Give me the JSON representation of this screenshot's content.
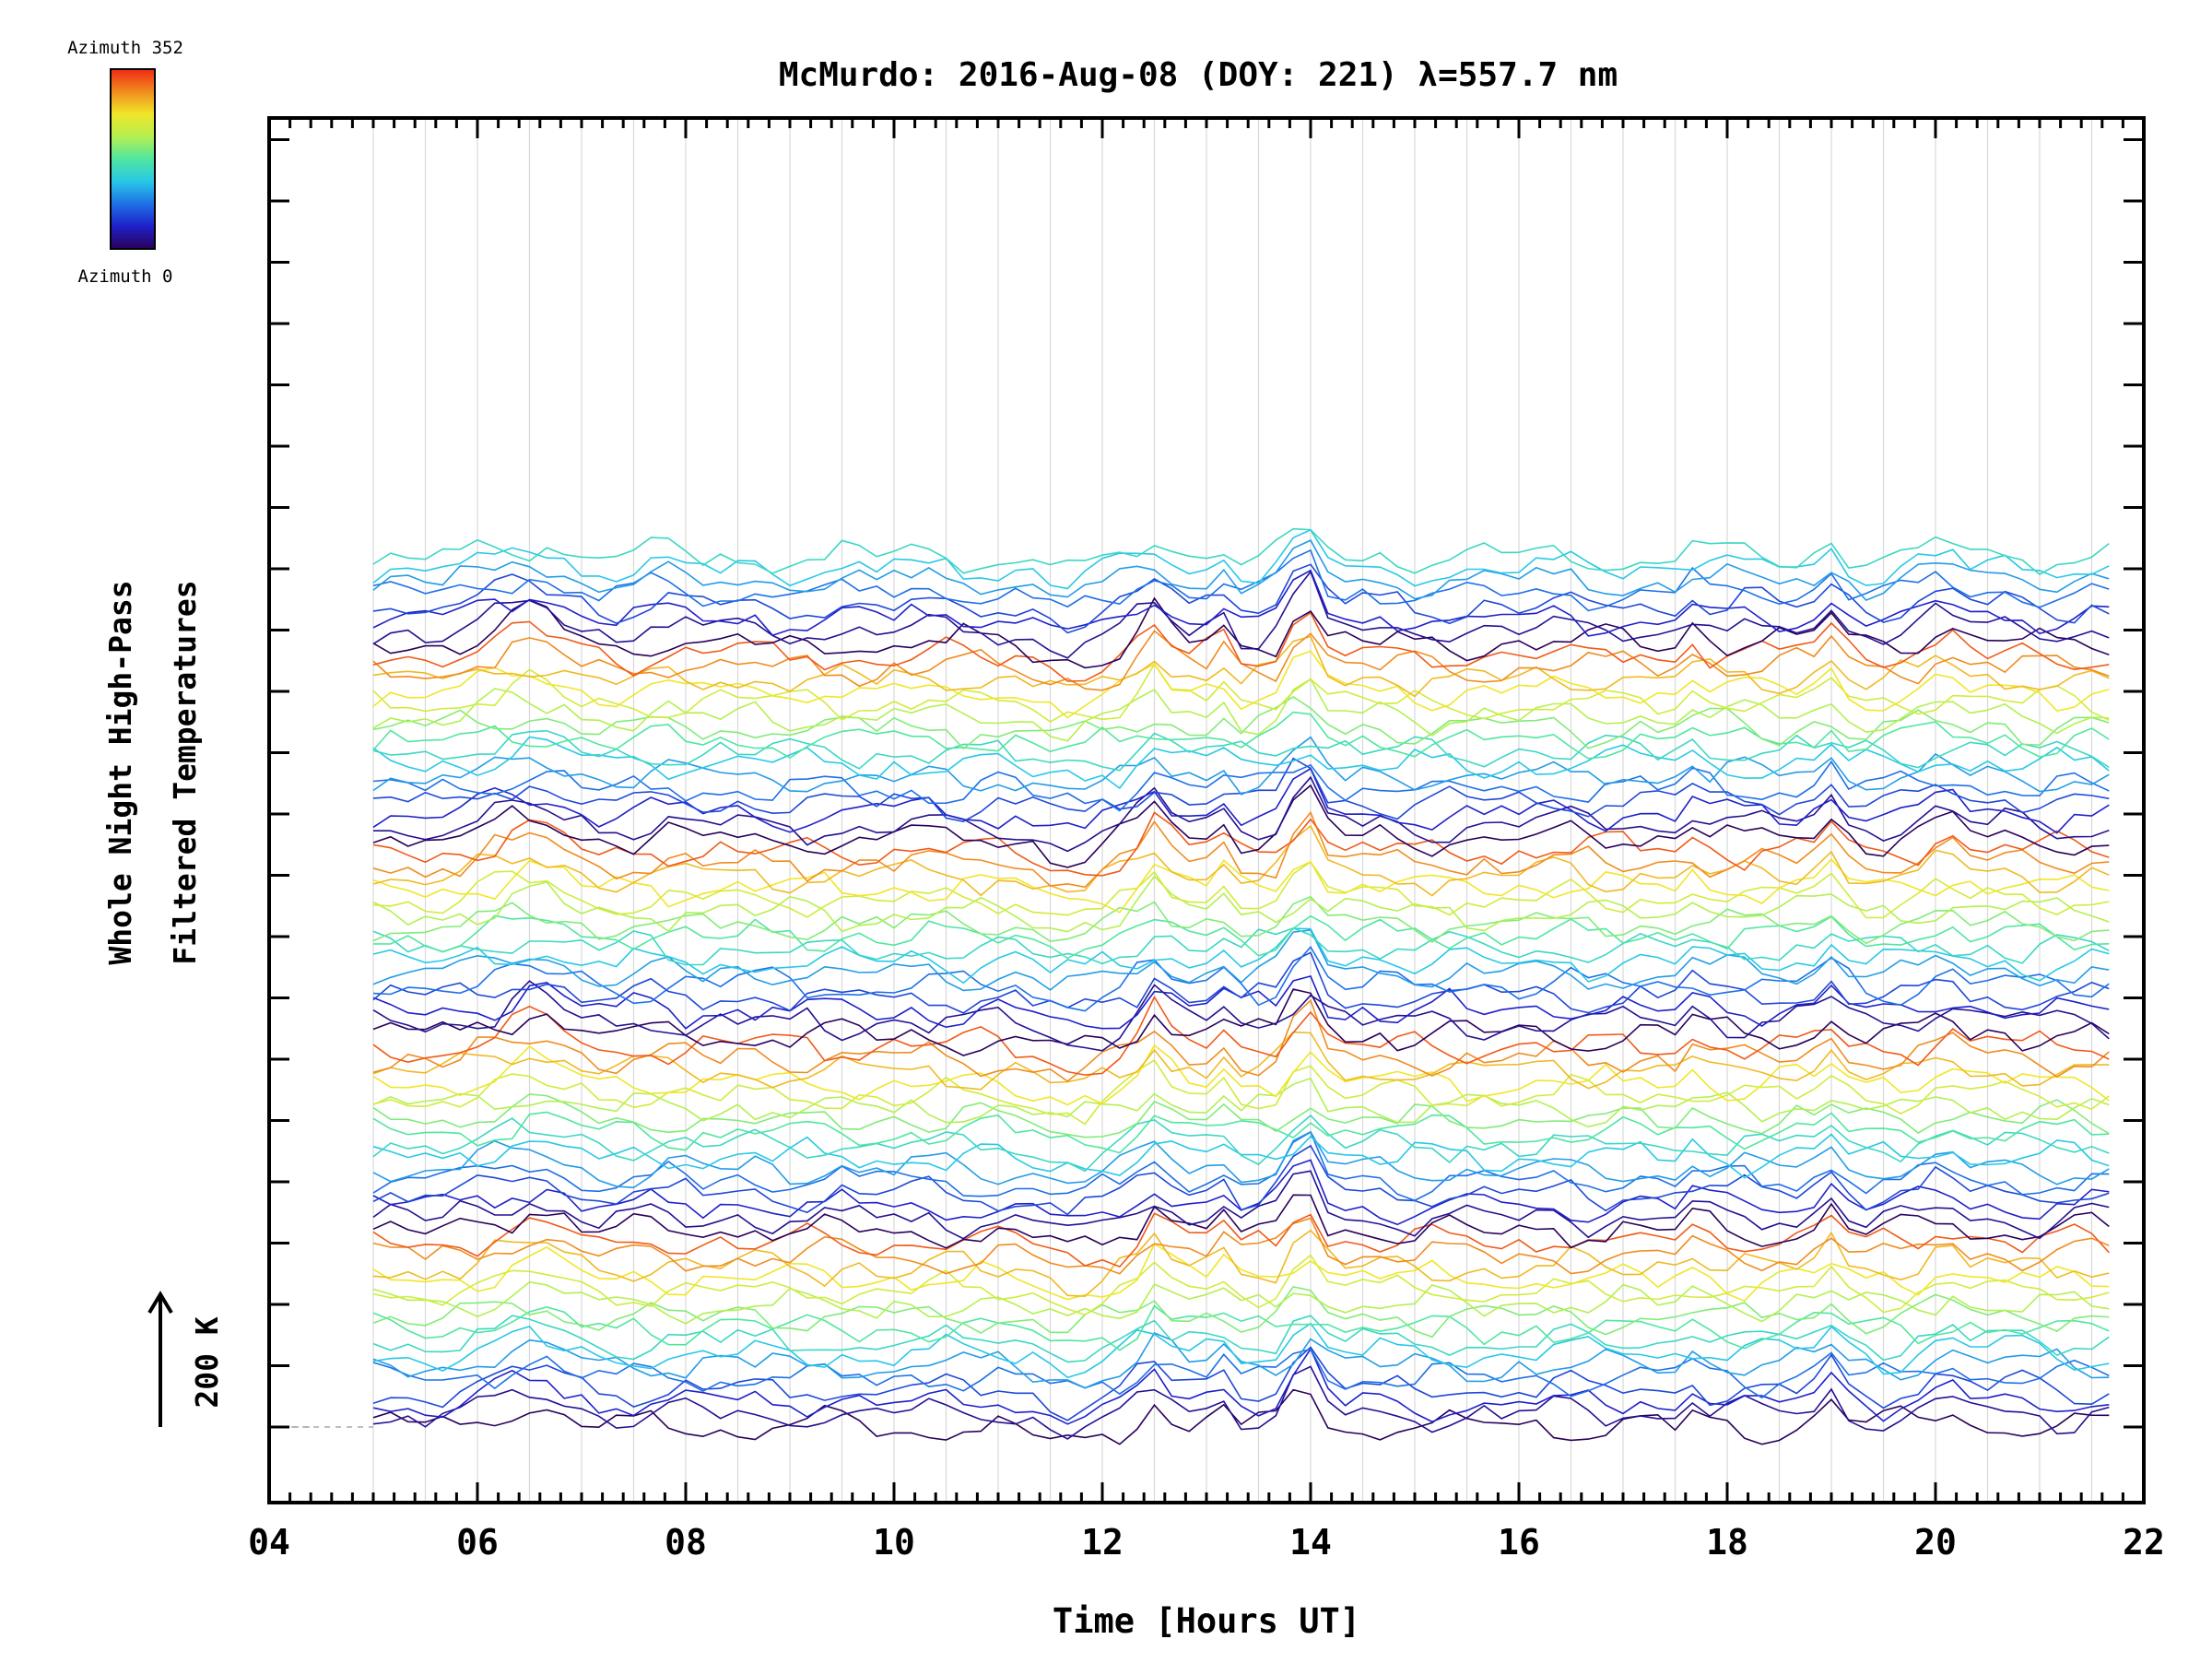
{
  "chart_data": {
    "type": "line",
    "title": "McMurdo: 2016-Aug-08 (DOY: 221) λ=557.7 nm",
    "xlabel": "Time [Hours UT]",
    "ylabel_line1": "Whole Night High-Pass",
    "ylabel_line2": "Filtered Temperatures",
    "scale_label": "200 K",
    "xlim": [
      4,
      22
    ],
    "x_ticks": [
      "04",
      "06",
      "08",
      "10",
      "12",
      "14",
      "16",
      "18",
      "20",
      "22"
    ],
    "x_tick_values": [
      4,
      6,
      8,
      10,
      12,
      14,
      16,
      18,
      20,
      22
    ],
    "y_units": "K",
    "trace_offset_K": 19,
    "trace_count": 72,
    "data_start_hour": 5.0,
    "data_end_hour": 21.7,
    "colorbar": {
      "top_label": "Azimuth 352",
      "bottom_label": "Azimuth 0",
      "colors": [
        "#2a005a",
        "#1e20c8",
        "#1e70e6",
        "#28c8e6",
        "#50e6a0",
        "#b4f050",
        "#f0e628",
        "#f08c1e",
        "#f02814"
      ]
    },
    "azimuth_min": 0,
    "azimuth_max": 352,
    "peak_events_hours": [
      6.5,
      12.5,
      13.15,
      13.9,
      14.05,
      17.7,
      19.0,
      20.1
    ],
    "accent_line_color": "#aaaaaa"
  }
}
